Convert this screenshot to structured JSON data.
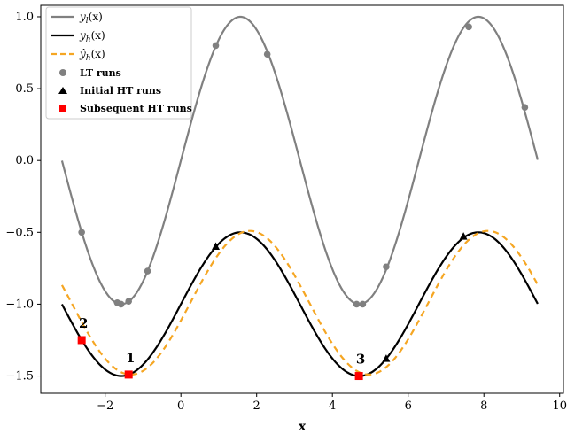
{
  "chart_data": {
    "type": "line",
    "title": "",
    "xlabel": "x",
    "ylabel": "",
    "xlim": [
      -3.7,
      10.1
    ],
    "ylim": [
      -1.62,
      1.08
    ],
    "xticks": [
      -2,
      0,
      2,
      4,
      6,
      8,
      10
    ],
    "xtick_labels": [
      "−2",
      "0",
      "2",
      "4",
      "6",
      "8",
      "10"
    ],
    "yticks": [
      -1.5,
      -1.0,
      -0.5,
      0.0,
      0.5,
      1.0
    ],
    "ytick_labels": [
      "−1.5",
      "−1.0",
      "−0.5",
      "0.0",
      "0.5",
      "1.0"
    ],
    "grid": false,
    "legend_position": "top-left",
    "series": [
      {
        "name": "y_l(x)",
        "kind": "line",
        "color": "#808080",
        "x_range": [
          -3.14,
          9.42
        ],
        "function": "sin(x)"
      },
      {
        "name": "y_h(x)",
        "kind": "line",
        "color": "#000000",
        "x_range": [
          -3.14,
          9.42
        ],
        "function": "0.5*sin(x) - 1"
      },
      {
        "name": "ŷ_h(x)",
        "kind": "dashed-line",
        "color": "#f5a623",
        "x_range": [
          -3.14,
          9.42
        ],
        "function": "0.5*sin(x - 0.25) - 0.99"
      },
      {
        "name": "LT runs",
        "kind": "scatter",
        "marker": "circle",
        "color": "#808080",
        "points": [
          [
            -2.62,
            -0.5
          ],
          [
            -1.68,
            -0.99
          ],
          [
            -1.58,
            -1.0
          ],
          [
            -1.38,
            -0.98
          ],
          [
            -0.88,
            -0.77
          ],
          [
            0.92,
            0.8
          ],
          [
            2.28,
            0.74
          ],
          [
            4.64,
            -1.0
          ],
          [
            4.8,
            -1.0
          ],
          [
            5.42,
            -0.74
          ],
          [
            7.6,
            0.93
          ],
          [
            9.08,
            0.37
          ]
        ]
      },
      {
        "name": "Initial HT runs",
        "kind": "scatter",
        "marker": "triangle",
        "color": "#000000",
        "points": [
          [
            0.92,
            -0.6
          ],
          [
            5.42,
            -1.38
          ],
          [
            7.46,
            -0.53
          ]
        ]
      },
      {
        "name": "Subsequent HT runs",
        "kind": "scatter",
        "marker": "square",
        "color": "#ff0000",
        "points": [
          [
            -2.62,
            -1.25
          ],
          [
            -1.38,
            -1.49
          ],
          [
            4.7,
            -1.5
          ]
        ]
      }
    ],
    "annotations": [
      {
        "text": "1",
        "x": -1.38,
        "y": -1.49
      },
      {
        "text": "2",
        "x": -2.62,
        "y": -1.25
      },
      {
        "text": "3",
        "x": 4.7,
        "y": -1.5
      }
    ]
  },
  "legend": {
    "entries": [
      {
        "label_main": "y",
        "label_sub": "l",
        "label_tail": "(x)"
      },
      {
        "label_main": "y",
        "label_sub": "h",
        "label_tail": "(x)"
      },
      {
        "label_main": "ŷ",
        "label_sub": "h",
        "label_tail": "(x)"
      },
      {
        "label": "LT runs"
      },
      {
        "label": "Initial HT runs"
      },
      {
        "label": "Subsequent HT runs"
      }
    ]
  }
}
